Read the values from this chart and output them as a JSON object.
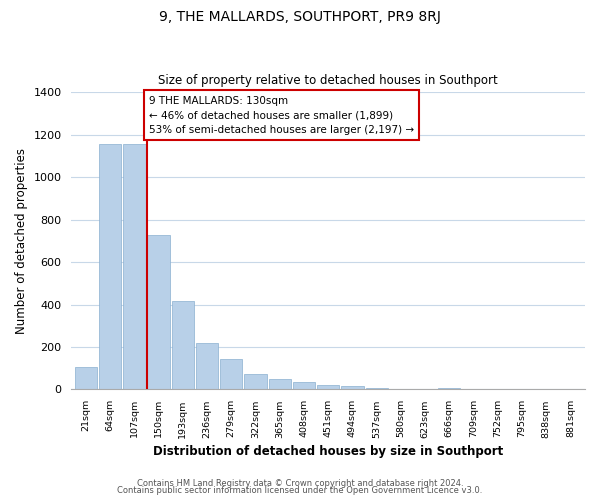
{
  "title": "9, THE MALLARDS, SOUTHPORT, PR9 8RJ",
  "subtitle": "Size of property relative to detached houses in Southport",
  "xlabel": "Distribution of detached houses by size in Southport",
  "ylabel": "Number of detached properties",
  "bar_labels": [
    "21sqm",
    "64sqm",
    "107sqm",
    "150sqm",
    "193sqm",
    "236sqm",
    "279sqm",
    "322sqm",
    "365sqm",
    "408sqm",
    "451sqm",
    "494sqm",
    "537sqm",
    "580sqm",
    "623sqm",
    "666sqm",
    "709sqm",
    "752sqm",
    "795sqm",
    "838sqm",
    "881sqm"
  ],
  "bar_values": [
    105,
    1155,
    1155,
    730,
    415,
    220,
    145,
    75,
    50,
    35,
    20,
    15,
    5,
    0,
    0,
    5,
    0,
    0,
    0,
    0,
    0
  ],
  "bar_color": "#b8d0e8",
  "bar_edge_color": "#8ab0d0",
  "vline_x": 2.5,
  "vline_color": "#cc0000",
  "annotation_title": "9 THE MALLARDS: 130sqm",
  "annotation_line1": "← 46% of detached houses are smaller (1,899)",
  "annotation_line2": "53% of semi-detached houses are larger (2,197) →",
  "box_color": "#cc0000",
  "ylim": [
    0,
    1400
  ],
  "yticks": [
    0,
    200,
    400,
    600,
    800,
    1000,
    1200,
    1400
  ],
  "footer1": "Contains HM Land Registry data © Crown copyright and database right 2024.",
  "footer2": "Contains public sector information licensed under the Open Government Licence v3.0.",
  "background_color": "#ffffff",
  "grid_color": "#c8d8e8"
}
